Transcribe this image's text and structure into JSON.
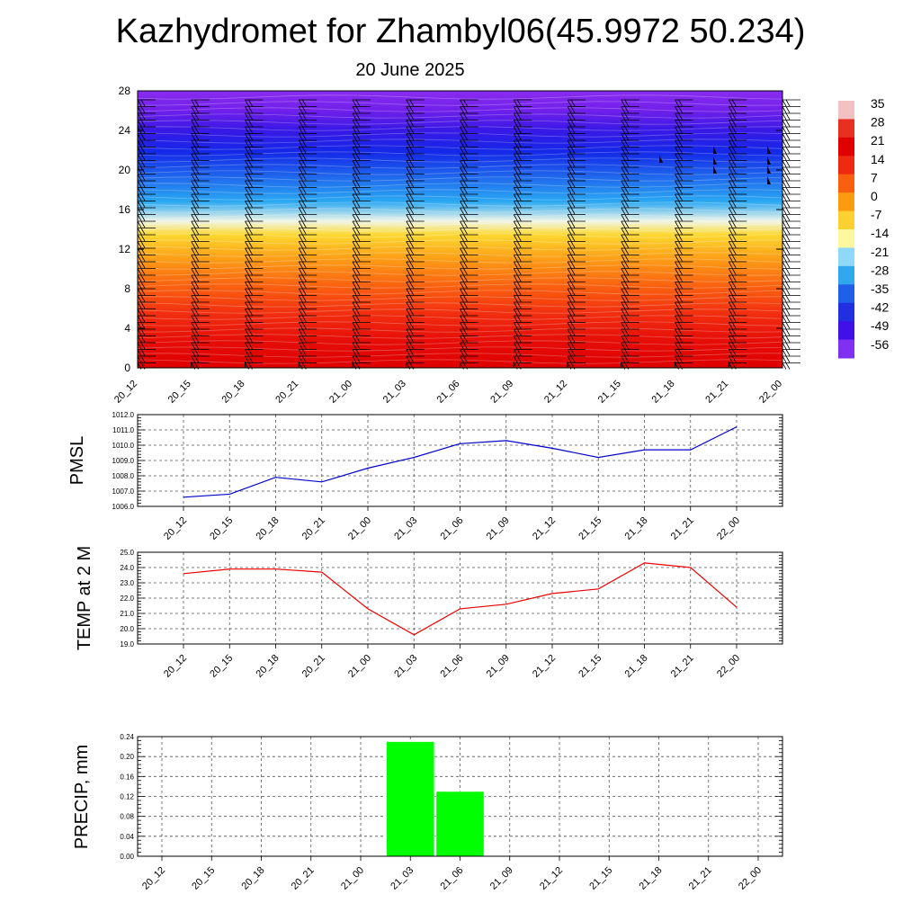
{
  "title": "Kazhydromet for Zhambyl06(45.9972 50.234)",
  "subtitle": "20 June 2025",
  "chart_data": [
    {
      "type": "heatmap",
      "description_axis": "height",
      "y_ticks": [
        "0",
        "4",
        "8",
        "12",
        "16",
        "20",
        "24",
        "28"
      ],
      "ylim": [
        0,
        28
      ],
      "x_ticks": [
        "20_12",
        "20_15",
        "20_18",
        "20_21",
        "21_00",
        "21_03",
        "21_06",
        "21_09",
        "21_12",
        "21_15",
        "21_18",
        "21_21",
        "22_00"
      ],
      "colorbar_labels": [
        "35",
        "28",
        "21",
        "14",
        "7",
        "0",
        "-7",
        "-14",
        "-21",
        "-28",
        "-35",
        "-42",
        "-49",
        "-56"
      ],
      "colorbar_colors": [
        "#f2c2c2",
        "#e83020",
        "#e00000",
        "#ee2a10",
        "#f86010",
        "#fc9a10",
        "#fcd030",
        "#fcf8a0",
        "#90d8f8",
        "#30a8f0",
        "#2060e8",
        "#2030e0",
        "#4010e8",
        "#8030f0"
      ],
      "wind_barbs": true
    },
    {
      "type": "line",
      "ylabel": "PMSL",
      "x": [
        "20_12",
        "20_15",
        "20_18",
        "20_21",
        "21_00",
        "21_03",
        "21_06",
        "21_09",
        "21_12",
        "21_15",
        "21_18",
        "21_21",
        "22_00"
      ],
      "values": [
        1006.6,
        1006.8,
        1007.9,
        1007.6,
        1008.5,
        1009.2,
        1010.1,
        1010.3,
        1009.8,
        1009.2,
        1009.7,
        1009.7,
        1011.2
      ],
      "y_ticks": [
        "1006.0",
        "1007.0",
        "1008.0",
        "1009.0",
        "1010.0",
        "1011.0",
        "1012.0"
      ],
      "ylim": [
        1006,
        1012
      ],
      "color": "#0000cc",
      "grid": true
    },
    {
      "type": "line",
      "ylabel": "TEMP at 2 M",
      "x": [
        "20_12",
        "20_15",
        "20_18",
        "20_21",
        "21_00",
        "21_03",
        "21_06",
        "21_09",
        "21_12",
        "21_15",
        "21_18",
        "21_21",
        "22_00"
      ],
      "values": [
        23.6,
        23.9,
        23.9,
        23.7,
        21.3,
        19.6,
        21.3,
        21.6,
        22.3,
        22.6,
        24.3,
        24.0,
        21.4
      ],
      "y_ticks": [
        "19.0",
        "20.0",
        "21.0",
        "22.0",
        "23.0",
        "24.0",
        "25.0"
      ],
      "ylim": [
        19,
        25
      ],
      "color": "#ee0000",
      "grid": true
    },
    {
      "type": "bar",
      "ylabel": "PRECIP, mm",
      "categories": [
        "20_12",
        "20_15",
        "20_18",
        "20_21",
        "21_00",
        "21_03",
        "21_06",
        "21_09",
        "21_12",
        "21_15",
        "21_18",
        "21_21",
        "22_00"
      ],
      "values": [
        0,
        0,
        0,
        0,
        0,
        0.23,
        0.13,
        0,
        0,
        0,
        0,
        0,
        0
      ],
      "y_ticks": [
        "0.00",
        "0.04",
        "0.08",
        "0.12",
        "0.16",
        "0.20",
        "0.24"
      ],
      "ylim": [
        0,
        0.24
      ],
      "color": "#00ff00",
      "grid": true
    }
  ]
}
